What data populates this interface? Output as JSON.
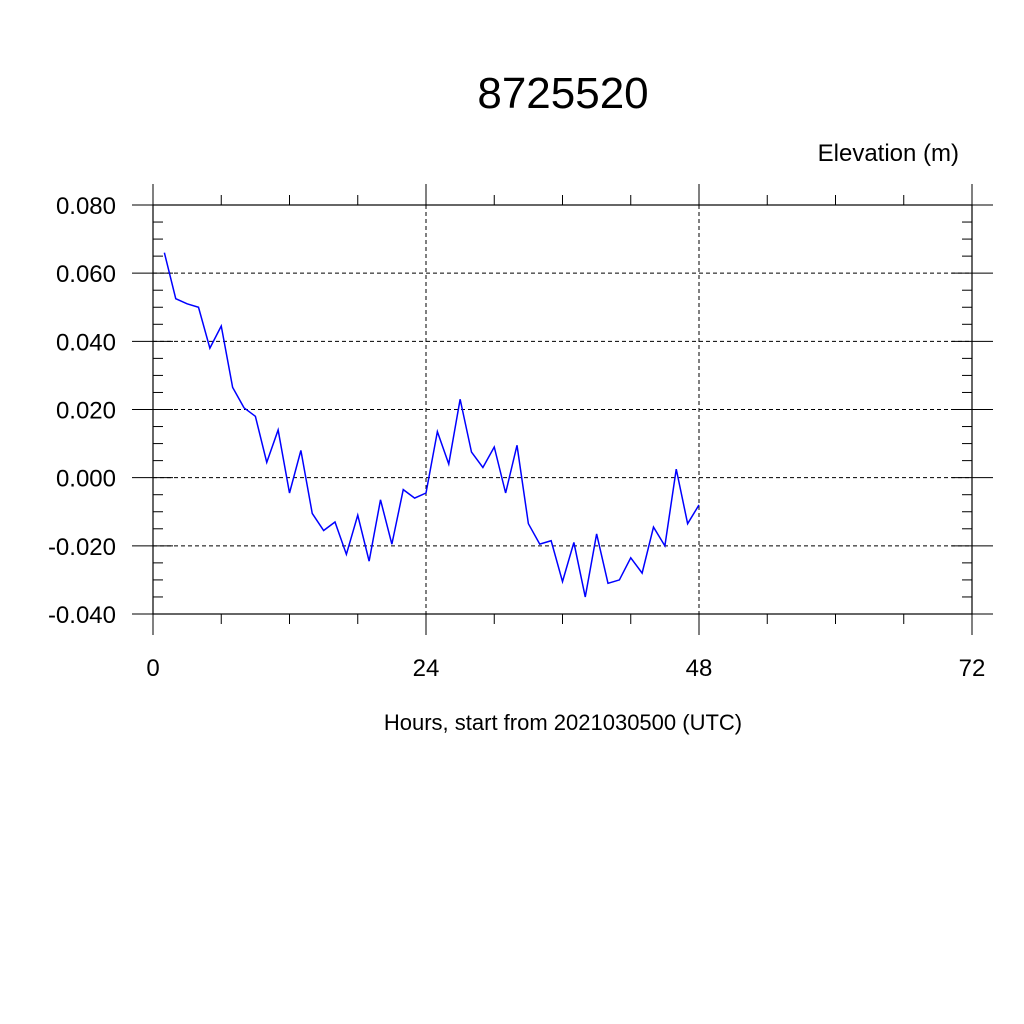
{
  "chart_data": {
    "type": "line",
    "title": "8725520",
    "subtitle": "Elevation (m)",
    "xlabel": "Hours, start from 2021030500 (UTC)",
    "ylabel": "",
    "xlim": [
      0,
      72
    ],
    "ylim": [
      -0.04,
      0.08
    ],
    "x_ticks": [
      0,
      24,
      48,
      72
    ],
    "x_tick_labels": [
      "0",
      "24",
      "48",
      "72"
    ],
    "y_ticks": [
      -0.04,
      -0.02,
      0.0,
      0.02,
      0.04,
      0.06,
      0.08
    ],
    "y_tick_labels": [
      "-0.040",
      "-0.020",
      "0.000",
      "0.020",
      "0.040",
      "0.060",
      "0.080"
    ],
    "grid": true,
    "series": [
      {
        "color": "#0000ff",
        "x": [
          1,
          2,
          3,
          4,
          5,
          6,
          7,
          8,
          9,
          10,
          11,
          12,
          13,
          14,
          15,
          16,
          17,
          18,
          19,
          20,
          21,
          22,
          23,
          24,
          25,
          26,
          27,
          28,
          29,
          30,
          31,
          32,
          33,
          34,
          35,
          36,
          37,
          38,
          39,
          40,
          41,
          42,
          43,
          44,
          45,
          46,
          47,
          48
        ],
        "values": [
          0.066,
          0.0525,
          0.051,
          0.05,
          0.038,
          0.0445,
          0.0265,
          0.0205,
          0.018,
          0.0045,
          0.014,
          -0.0045,
          0.008,
          -0.0105,
          -0.0155,
          -0.013,
          -0.0225,
          -0.011,
          -0.0245,
          -0.0065,
          -0.0195,
          -0.0035,
          -0.006,
          -0.0045,
          0.0135,
          0.004,
          0.023,
          0.0075,
          0.003,
          0.009,
          -0.0045,
          0.0095,
          -0.0135,
          -0.0195,
          -0.0185,
          -0.0305,
          -0.019,
          -0.035,
          -0.0165,
          -0.031,
          -0.03,
          -0.0235,
          -0.028,
          -0.0145,
          -0.02,
          0.0025,
          -0.0135,
          -0.008
        ]
      }
    ]
  }
}
